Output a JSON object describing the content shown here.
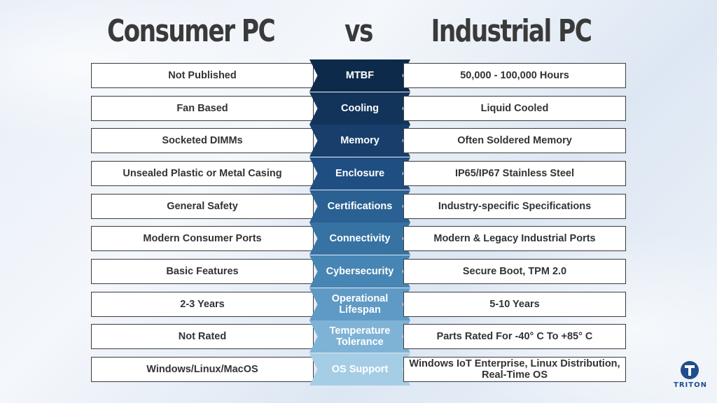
{
  "headings": {
    "left": "Consumer PC",
    "vs": "vs",
    "right": "Industrial PC"
  },
  "rows": [
    {
      "left": "Not Published",
      "category": "MTBF",
      "right": "50,000 - 100,000 Hours",
      "color": "#0e2a4a"
    },
    {
      "left": "Fan Based",
      "category": "Cooling",
      "right": "Liquid Cooled",
      "color": "#13345a"
    },
    {
      "left": "Socketed DIMMs",
      "category": "Memory",
      "right": "Often Soldered Memory",
      "color": "#183f6c"
    },
    {
      "left": "Unsealed Plastic or Metal Casing",
      "category": "Enclosure",
      "right": "IP65/IP67 Stainless Steel",
      "color": "#1f4e82"
    },
    {
      "left": "General Safety",
      "category": "Certifications",
      "right": "Industry-specific Specifications",
      "color": "#2a6192"
    },
    {
      "left": "Modern Consumer Ports",
      "category": "Connectivity",
      "right": "Modern & Legacy Industrial Ports",
      "color": "#3673a3"
    },
    {
      "left": "Basic Features",
      "category": "Cybersecurity",
      "right": "Secure Boot, TPM 2.0",
      "color": "#4785b4"
    },
    {
      "left": "2-3 Years",
      "category": "Operational Lifespan",
      "right": "5-10 Years",
      "color": "#5f9ac5"
    },
    {
      "left": "Not Rated",
      "category": "Temperature Tolerance",
      "right": "Parts Rated For -40° C To +85° C",
      "color": "#7fb3d6"
    },
    {
      "left": "Windows/Linux/MacOS",
      "category": "OS Support",
      "right": "Windows IoT Enterprise, Linux Distribution, Real-Time OS",
      "color": "#a6cde6"
    }
  ],
  "logo": {
    "text": "TRITON",
    "icon": "triton-logo-icon",
    "color": "#1f4e8c"
  }
}
